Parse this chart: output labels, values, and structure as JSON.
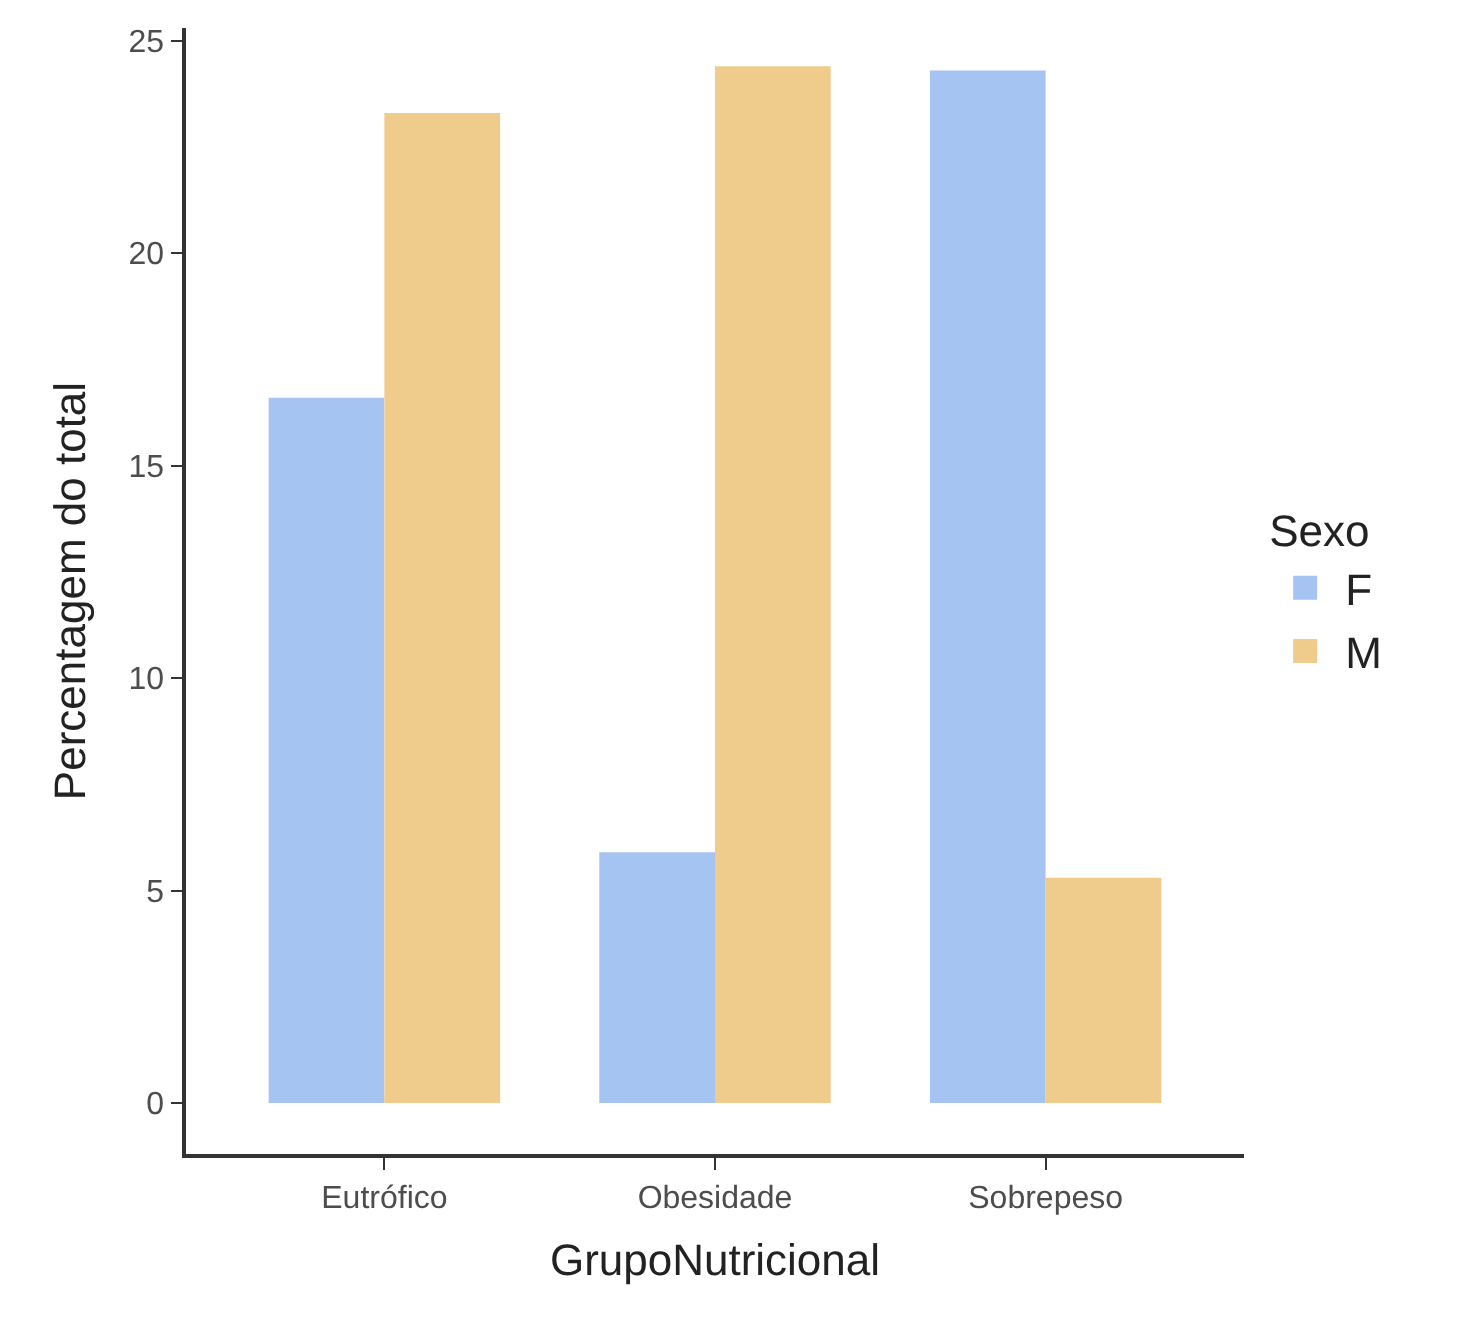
{
  "chart_data": {
    "type": "bar",
    "xlabel": "GrupoNutricional",
    "ylabel": "Percentagem do total",
    "legend_title": "Sexo",
    "categories": [
      "Eutrófico",
      "Obesidade",
      "Sobrepeso"
    ],
    "series": [
      {
        "name": "F",
        "color": "#a6c4f2",
        "values": [
          16.6,
          5.9,
          24.3
        ]
      },
      {
        "name": "M",
        "color": "#f0cc8c",
        "values": [
          23.3,
          24.4,
          5.3
        ]
      }
    ],
    "ylim": [
      -1.2,
      25.3
    ],
    "yticks": [
      0,
      5,
      10,
      15,
      20,
      25
    ],
    "legend": "right"
  }
}
